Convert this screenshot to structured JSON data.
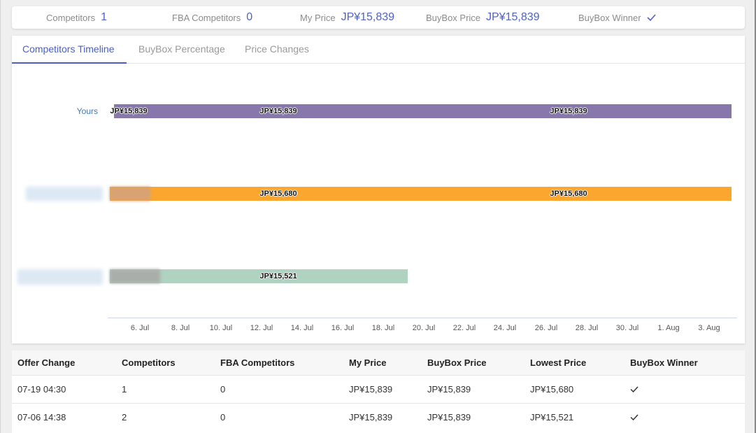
{
  "stats": {
    "competitors": {
      "label": "Competitors",
      "value": "1"
    },
    "fba_competitors": {
      "label": "FBA Competitors",
      "value": "0"
    },
    "my_price": {
      "label": "My Price",
      "value": "JP¥15,839"
    },
    "buybox_price": {
      "label": "BuyBox Price",
      "value": "JP¥15,839"
    },
    "buybox_winner": {
      "label": "BuyBox Winner",
      "icon": "check-icon",
      "winner": true
    }
  },
  "tabs": [
    {
      "label": "Competitors Timeline",
      "active": true
    },
    {
      "label": "BuyBox Percentage",
      "active": false
    },
    {
      "label": "Price Changes",
      "active": false
    }
  ],
  "timeline": {
    "rows": [
      {
        "label": "Yours",
        "color": "#8877ab",
        "bar_labels": [
          "JP¥15,839",
          "JP¥15,839",
          "JP¥15,839"
        ]
      },
      {
        "label": "",
        "color": "#fba72f",
        "bar_labels": [
          "JP¥15,680",
          "JP¥15,680"
        ]
      },
      {
        "label": "",
        "color": "#b0d2c0",
        "bar_labels": [
          "JP¥15,521"
        ]
      }
    ],
    "x_ticks": [
      "6. Jul",
      "8. Jul",
      "10. Jul",
      "12. Jul",
      "14. Jul",
      "16. Jul",
      "18. Jul",
      "20. Jul",
      "22. Jul",
      "24. Jul",
      "26. Jul",
      "28. Jul",
      "30. Jul",
      "1. Aug",
      "3. Aug"
    ]
  },
  "table": {
    "headers": [
      "Offer Change",
      "Competitors",
      "FBA Competitors",
      "My Price",
      "BuyBox Price",
      "Lowest Price",
      "BuyBox Winner"
    ],
    "rows": [
      {
        "offer_change": "07-19 04:30",
        "competitors": "1",
        "fba_competitors": "0",
        "my_price": "JP¥15,839",
        "buybox_price": "JP¥15,839",
        "lowest_price": "JP¥15,680",
        "buybox_winner": true
      },
      {
        "offer_change": "07-06 14:38",
        "competitors": "2",
        "fba_competitors": "0",
        "my_price": "JP¥15,839",
        "buybox_price": "JP¥15,839",
        "lowest_price": "JP¥15,521",
        "buybox_winner": true
      }
    ]
  },
  "colors": {
    "accent": "#4a5fc1",
    "link": "#3d7ab8"
  }
}
